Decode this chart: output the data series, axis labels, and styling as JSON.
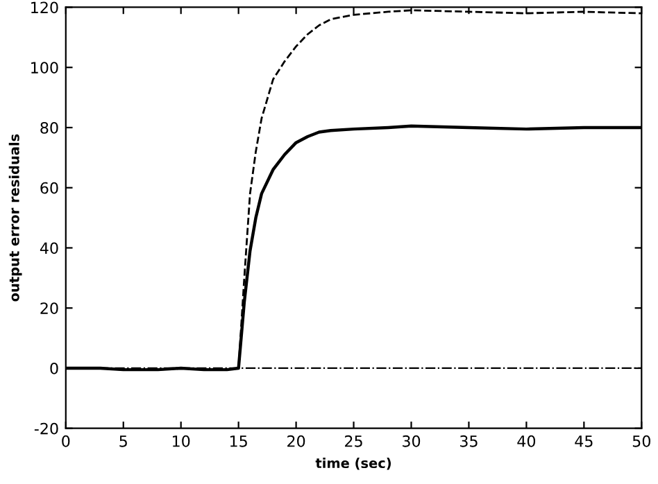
{
  "chart_data": {
    "type": "line",
    "xlabel": "time (sec)",
    "ylabel": "output error residuals",
    "xlim": [
      0,
      50
    ],
    "ylim": [
      -20,
      120
    ],
    "xticks": [
      0,
      5,
      10,
      15,
      20,
      25,
      30,
      35,
      40,
      45,
      50
    ],
    "yticks": [
      -20,
      0,
      20,
      40,
      60,
      80,
      100,
      120
    ],
    "grid": false,
    "legend": false,
    "marker": "none",
    "series": [
      {
        "color": "#000000",
        "line_style": "solid",
        "x": [
          0,
          3,
          5,
          8,
          10,
          12,
          14,
          15,
          15.5,
          16,
          16.5,
          17,
          18,
          19,
          20,
          21,
          22,
          23,
          25,
          28,
          30,
          35,
          40,
          45,
          50
        ],
        "values": [
          0,
          0,
          -0.5,
          -0.5,
          0,
          -0.5,
          -0.5,
          0,
          22,
          39,
          50,
          58,
          66,
          71,
          75,
          77,
          78.5,
          79,
          79.5,
          80,
          80.5,
          80,
          79.5,
          80,
          80
        ]
      },
      {
        "color": "#000000",
        "line_style": "dashed",
        "x": [
          0,
          3,
          5,
          8,
          10,
          12,
          14,
          15,
          15.5,
          16,
          16.5,
          17,
          18,
          19,
          20,
          21,
          22,
          23,
          25,
          28,
          30,
          35,
          40,
          45,
          50
        ],
        "values": [
          0,
          0,
          -0.5,
          -0.5,
          0,
          -0.5,
          -0.5,
          0,
          30,
          58,
          72,
          83,
          96,
          102,
          107,
          111,
          114,
          116,
          117.5,
          118.5,
          119,
          118.5,
          118,
          118.5,
          118
        ]
      },
      {
        "color": "#000000",
        "line_style": "dashdot",
        "x": [
          0,
          10,
          15,
          20,
          30,
          40,
          50
        ],
        "values": [
          0,
          0,
          0,
          0,
          0,
          0,
          0
        ]
      }
    ]
  }
}
